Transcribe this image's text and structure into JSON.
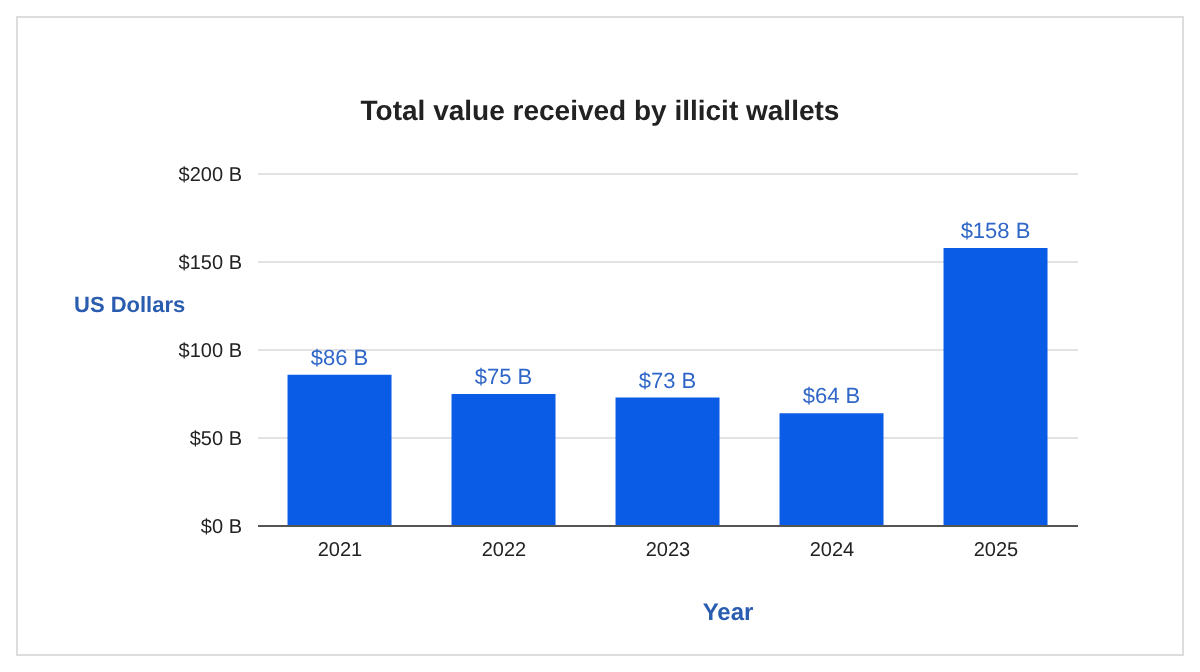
{
  "chart_data": {
    "type": "bar",
    "title": "Total value received by illicit wallets",
    "xlabel": "Year",
    "ylabel": "US Dollars",
    "categories": [
      "2021",
      "2022",
      "2023",
      "2024",
      "2025"
    ],
    "values": [
      86,
      75,
      73,
      64,
      158
    ],
    "color": "#0a5ce6",
    "value_labels": [
      "$86 B",
      "$75 B",
      "$73 B",
      "$64 B",
      "$158 B"
    ],
    "ylim": [
      0,
      200
    ],
    "yticks": [
      {
        "value": 0,
        "label": "$0 B"
      },
      {
        "value": 50,
        "label": "$50 B"
      },
      {
        "value": 100,
        "label": "$100 B"
      },
      {
        "value": 150,
        "label": "$150 B"
      },
      {
        "value": 200,
        "label": "$200 B"
      }
    ],
    "grid": "y"
  }
}
